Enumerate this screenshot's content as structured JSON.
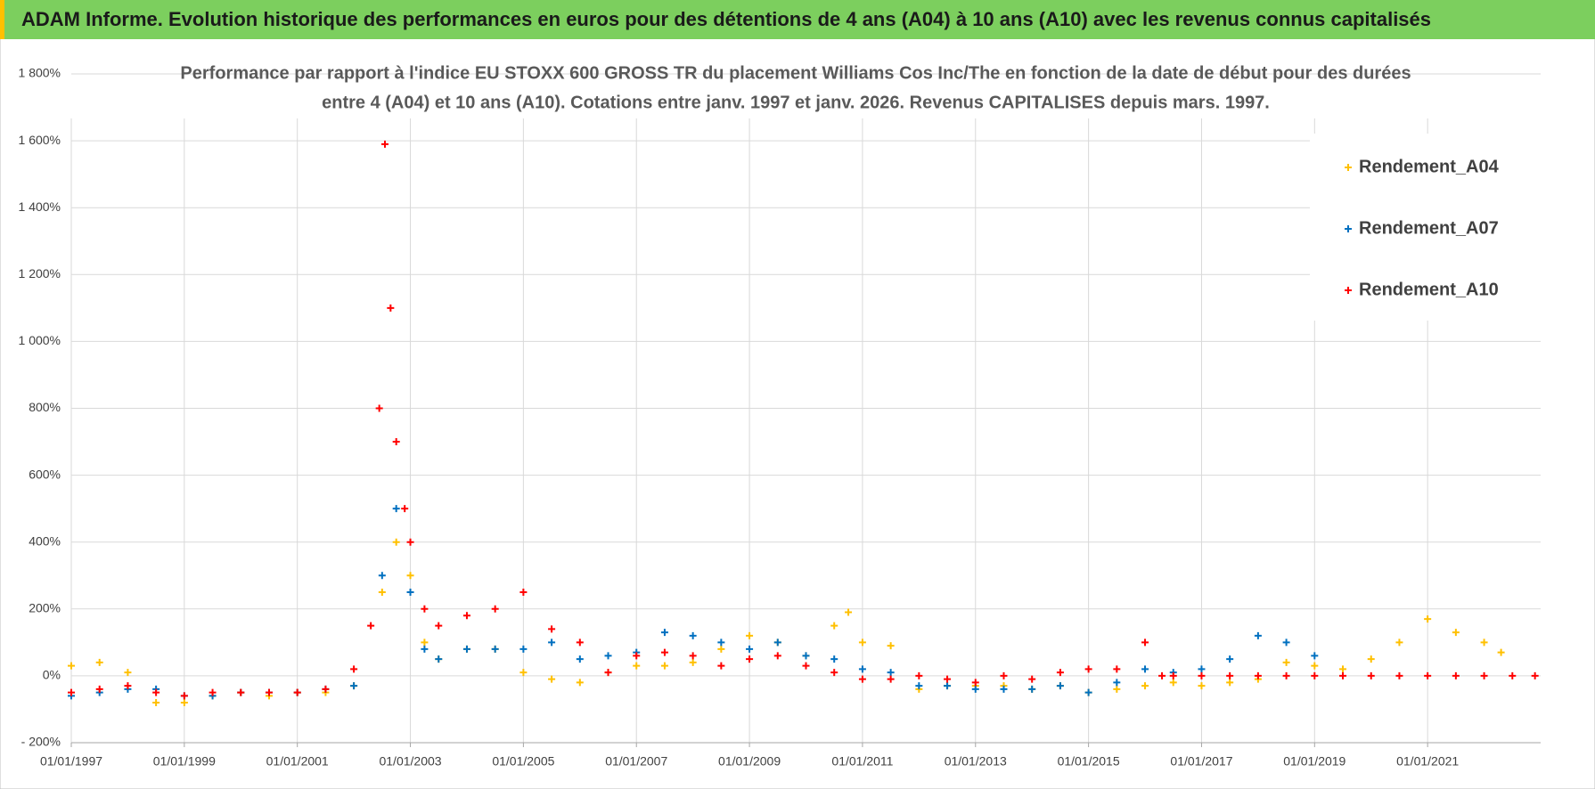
{
  "chart_data": {
    "type": "scatter",
    "title": "ADAM Informe. Evolution historique des performances en euros pour des détentions de 4 ans (A04) à 10 ans (A10) avec les revenus connus capitalisés",
    "subtitle": [
      "Performance par rapport à l'indice EU STOXX 600 GROSS TR  du placement Williams Cos Inc/The en fonction de la date de début pour des durées",
      "entre 4 (A04) et 10 ans (A10). Cotations entre janv. 1997 et janv. 2026. Revenus CAPITALISES depuis mars. 1997."
    ],
    "xlim": [
      1997,
      2023
    ],
    "xticks": [
      {
        "value": 1997,
        "label": "01/01/1997"
      },
      {
        "value": 1999,
        "label": "01/01/1999"
      },
      {
        "value": 2001,
        "label": "01/01/2001"
      },
      {
        "value": 2003,
        "label": "01/01/2003"
      },
      {
        "value": 2005,
        "label": "01/01/2005"
      },
      {
        "value": 2007,
        "label": "01/01/2007"
      },
      {
        "value": 2009,
        "label": "01/01/2009"
      },
      {
        "value": 2011,
        "label": "01/01/2011"
      },
      {
        "value": 2013,
        "label": "01/01/2013"
      },
      {
        "value": 2015,
        "label": "01/01/2015"
      },
      {
        "value": 2017,
        "label": "01/01/2017"
      },
      {
        "value": 2019,
        "label": "01/01/2019"
      },
      {
        "value": 2021,
        "label": "01/01/2021"
      }
    ],
    "ylim": [
      -200,
      1800
    ],
    "yticks": [
      {
        "value": -200,
        "label": "- 200%"
      },
      {
        "value": 0,
        "label": "0%"
      },
      {
        "value": 200,
        "label": "200%"
      },
      {
        "value": 400,
        "label": "400%"
      },
      {
        "value": 600,
        "label": "600%"
      },
      {
        "value": 800,
        "label": "800%"
      },
      {
        "value": 1000,
        "label": "1 000%"
      },
      {
        "value": 1200,
        "label": "1 200%"
      },
      {
        "value": 1400,
        "label": "1 400%"
      },
      {
        "value": 1600,
        "label": "1 600%"
      },
      {
        "value": 1800,
        "label": "1 800%"
      }
    ],
    "grid": true,
    "legend": "top-right",
    "series": [
      {
        "name": "Rendement_A04",
        "color": "#ffc000",
        "x": [
          1997,
          1997.5,
          1998,
          1998.5,
          1999,
          1999.5,
          2000,
          2000.5,
          2001,
          2001.5,
          2002,
          2002.5,
          2002.75,
          2003,
          2003.25,
          2003.5,
          2004,
          2004.5,
          2005,
          2005.5,
          2006,
          2006.5,
          2007,
          2007.5,
          2008,
          2008.5,
          2009,
          2009.5,
          2010,
          2010.5,
          2010.75,
          2011,
          2011.5,
          2012,
          2012.5,
          2013,
          2013.5,
          2014,
          2014.5,
          2015,
          2015.5,
          2016,
          2016.5,
          2017,
          2017.5,
          2018,
          2018.5,
          2019,
          2019.5,
          2020,
          2020.5,
          2021,
          2021.5,
          2022,
          2022.3
        ],
        "values": [
          30,
          40,
          10,
          -80,
          -80,
          -60,
          -50,
          -60,
          -50,
          -50,
          -30,
          250,
          400,
          300,
          100,
          50,
          80,
          80,
          10,
          -10,
          -20,
          10,
          30,
          30,
          40,
          80,
          120,
          100,
          60,
          150,
          190,
          100,
          90,
          -40,
          -30,
          -30,
          -30,
          -40,
          -30,
          -50,
          -40,
          -30,
          -20,
          -30,
          -20,
          -10,
          40,
          30,
          20,
          50,
          100,
          170,
          130,
          100,
          70
        ]
      },
      {
        "name": "Rendement_A07",
        "color": "#0070c0",
        "x": [
          1997,
          1997.5,
          1998,
          1998.5,
          1999,
          1999.5,
          2000,
          2000.5,
          2001,
          2001.5,
          2002,
          2002.5,
          2002.75,
          2003,
          2003.25,
          2003.5,
          2004,
          2004.5,
          2005,
          2005.5,
          2006,
          2006.5,
          2007,
          2007.5,
          2008,
          2008.5,
          2009,
          2009.5,
          2010,
          2010.5,
          2011,
          2011.5,
          2012,
          2012.5,
          2013,
          2013.5,
          2014,
          2014.5,
          2015,
          2015.5,
          2016,
          2016.5,
          2017,
          2017.5,
          2018,
          2018.5,
          2019
        ],
        "values": [
          -60,
          -50,
          -40,
          -40,
          -60,
          -60,
          -50,
          -50,
          -50,
          -40,
          -30,
          300,
          500,
          250,
          80,
          50,
          80,
          80,
          80,
          100,
          50,
          60,
          70,
          130,
          120,
          100,
          80,
          100,
          60,
          50,
          20,
          10,
          -30,
          -30,
          -40,
          -40,
          -40,
          -30,
          -50,
          -20,
          20,
          10,
          20,
          50,
          120,
          100,
          60
        ]
      },
      {
        "name": "Rendement_A10",
        "color": "#ff0000",
        "x": [
          1997,
          1997.5,
          1998,
          1998.5,
          1999,
          1999.5,
          2000,
          2000.5,
          2001,
          2001.5,
          2002,
          2002.3,
          2002.45,
          2002.55,
          2002.65,
          2002.75,
          2002.9,
          2003,
          2003.25,
          2003.5,
          2004,
          2004.5,
          2005,
          2005.5,
          2006,
          2006.5,
          2007,
          2007.5,
          2008,
          2008.5,
          2009,
          2009.5,
          2010,
          2010.5,
          2011,
          2011.5,
          2012,
          2012.5,
          2013,
          2013.5,
          2014,
          2014.5,
          2015,
          2015.5,
          2016,
          2016.3,
          2016.5,
          2017,
          2017.5,
          2018,
          2018.5,
          2019,
          2019.5,
          2020,
          2020.5,
          2021,
          2021.5,
          2022,
          2022.5,
          2022.9
        ],
        "values": [
          -50,
          -40,
          -30,
          -50,
          -60,
          -50,
          -50,
          -50,
          -50,
          -40,
          20,
          150,
          800,
          1590,
          1100,
          700,
          500,
          400,
          200,
          150,
          180,
          200,
          250,
          140,
          100,
          10,
          60,
          70,
          60,
          30,
          50,
          60,
          30,
          10,
          -10,
          -10,
          0,
          -10,
          -20,
          0,
          -10,
          10,
          20,
          20,
          100,
          0,
          0,
          0,
          0,
          0,
          0,
          0,
          0,
          0,
          0,
          0,
          0,
          0,
          0,
          0
        ]
      }
    ]
  }
}
